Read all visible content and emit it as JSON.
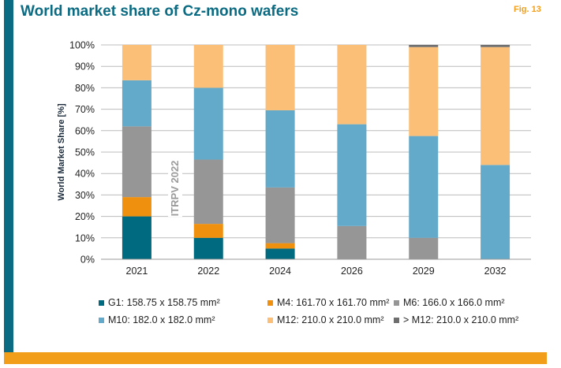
{
  "header": {
    "title": "World market share of Cz-mono wafers",
    "figure_label": "Fig. 13"
  },
  "watermark": "ITRPV 2022",
  "colors": {
    "G1": "#006a80",
    "M4": "#f0900f",
    "M6": "#969696",
    "M10": "#63aaca",
    "M12": "#fbbf77",
    "gtM12": "#6e6e6e",
    "grid": "#bcbcbc",
    "brand": "#0a6b82",
    "accent": "#f29e1b"
  },
  "chart_data": {
    "type": "bar",
    "stacked": true,
    "title": "",
    "xlabel": "",
    "ylabel": "World Market Share [%]",
    "ylim": [
      0,
      100
    ],
    "yticks": [
      "0%",
      "10%",
      "20%",
      "30%",
      "40%",
      "50%",
      "60%",
      "70%",
      "80%",
      "90%",
      "100%"
    ],
    "grid": true,
    "legend_position": "bottom",
    "categories": [
      "2021",
      "2022",
      "2024",
      "2026",
      "2029",
      "2032"
    ],
    "series": [
      {
        "name": "G1: 158.75 x 158.75 mm²",
        "key": "G1",
        "values": [
          20,
          10,
          5,
          0,
          0,
          0
        ]
      },
      {
        "name": "M4: 161.70 x 161.70 mm²",
        "key": "M4",
        "values": [
          9,
          6.5,
          2.5,
          0,
          0,
          0
        ]
      },
      {
        "name": "M6: 166.0 x 166.0 mm²",
        "key": "M6",
        "values": [
          33,
          30,
          26,
          15.5,
          10,
          0
        ]
      },
      {
        "name": "M10: 182.0 x 182.0 mm²",
        "key": "M10",
        "values": [
          21.5,
          33.5,
          36,
          47.5,
          47.5,
          44
        ]
      },
      {
        "name": "M12: 210.0 x 210.0 mm²",
        "key": "M12",
        "values": [
          16.5,
          20,
          30.5,
          37,
          41.5,
          55
        ]
      },
      {
        "name": "> M12: 210.0 x 210.0 mm²",
        "key": "gtM12",
        "values": [
          0,
          0,
          0,
          0,
          1,
          1
        ]
      }
    ]
  }
}
